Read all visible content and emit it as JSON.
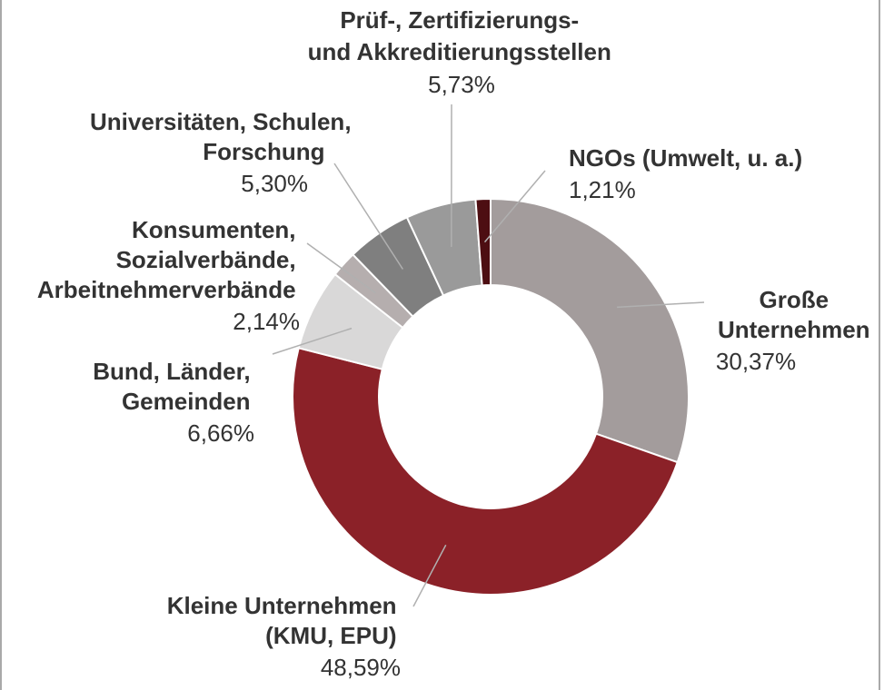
{
  "chart_data": {
    "type": "pie",
    "donut": true,
    "title": "",
    "slices": [
      {
        "label_lines": [
          "Große",
          "Unternehmen"
        ],
        "value_text": "30,37%",
        "value": 30.37,
        "color": "#a39c9c"
      },
      {
        "label_lines": [
          "Kleine Unternehmen",
          "(KMU, EPU)"
        ],
        "value_text": "48,59%",
        "value": 48.59,
        "color": "#8b2128"
      },
      {
        "label_lines": [
          "Bund, Länder,",
          "Gemeinden"
        ],
        "value_text": "6,66%",
        "value": 6.66,
        "color": "#d9d8d8"
      },
      {
        "label_lines": [
          "Konsumenten,",
          "Sozialverbände,",
          "Arbeitnehmerverbände"
        ],
        "value_text": "2,14%",
        "value": 2.14,
        "color": "#b5aeae"
      },
      {
        "label_lines": [
          "Universitäten, Schulen,",
          "Forschung"
        ],
        "value_text": "5,30%",
        "value": 5.3,
        "color": "#7f7f7f"
      },
      {
        "label_lines": [
          "Prüf-, Zertifizierungs-",
          "und Akkreditierungsstellen"
        ],
        "value_text": "5,73%",
        "value": 5.73,
        "color": "#9a9a9a"
      },
      {
        "label_lines": [
          "NGOs (Umwelt, u. a.)"
        ],
        "value_text": "1,21%",
        "value": 1.21,
        "color": "#4d0e12"
      }
    ]
  }
}
